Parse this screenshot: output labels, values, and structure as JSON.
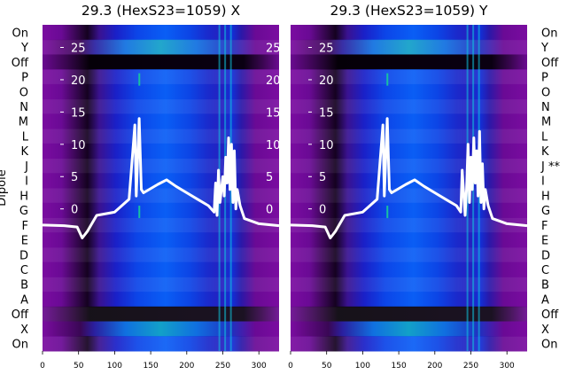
{
  "chart_data": [
    {
      "type": "heatmap",
      "title": "29.3 (HexS23=1059) X",
      "ylabel": "Dipole",
      "row_labels": [
        "On",
        "Y",
        "Off",
        "P",
        "O",
        "N",
        "M",
        "L",
        "K",
        "J",
        "I",
        "H",
        "G",
        "F",
        "E",
        "D",
        "C",
        "B",
        "A",
        "Off",
        "X",
        "On"
      ],
      "x_ticks": [
        0,
        50,
        100,
        150,
        200,
        250,
        300
      ],
      "xlim": [
        0,
        328
      ],
      "overlay_ticks": [
        25,
        20,
        15,
        10,
        5,
        0
      ],
      "overlay_ylim": [
        -22,
        28.5
      ],
      "overlay_series": {
        "x": [
          0,
          30,
          48,
          55,
          62,
          75,
          100,
          120,
          128,
          130,
          134,
          137,
          140,
          160,
          172,
          185,
          200,
          215,
          230,
          238,
          240,
          242,
          244,
          246,
          248,
          250,
          252,
          254,
          256,
          258,
          260,
          262,
          264,
          266,
          268,
          270,
          274,
          280,
          300,
          328
        ],
        "y": [
          -2.5,
          -2.6,
          -2.8,
          -4.5,
          -3.5,
          -1,
          -0.5,
          1.5,
          13,
          2,
          14,
          3,
          2.5,
          3.8,
          4.5,
          3.5,
          2.5,
          1.5,
          0.5,
          -0.5,
          4,
          -1,
          6,
          1,
          3,
          5,
          2,
          8,
          4,
          11,
          3,
          10,
          1,
          9,
          0,
          3,
          0.5,
          -1.5,
          -2.3,
          -2.6
        ]
      }
    },
    {
      "type": "heatmap",
      "title": "29.3 (HexS23=1059) Y",
      "row_labels": [
        "On",
        "Y",
        "Off",
        "P",
        "O",
        "N",
        "M",
        "L",
        "K",
        "J **",
        "I",
        "H",
        "G",
        "F",
        "E",
        "D",
        "C",
        "B",
        "A",
        "Off",
        "X",
        "On"
      ],
      "x_ticks": [
        0,
        50,
        100,
        150,
        200,
        250,
        300
      ],
      "xlim": [
        0,
        328
      ],
      "overlay_ticks": [
        25,
        20,
        15,
        10,
        5,
        0
      ],
      "overlay_ylim": [
        -22,
        28.5
      ],
      "overlay_series": {
        "x": [
          0,
          30,
          48,
          55,
          62,
          75,
          100,
          120,
          128,
          130,
          134,
          137,
          140,
          160,
          172,
          185,
          200,
          215,
          230,
          236,
          238,
          242,
          244,
          246,
          248,
          250,
          252,
          254,
          256,
          258,
          260,
          262,
          264,
          266,
          268,
          270,
          274,
          280,
          300,
          328
        ],
        "y": [
          -2.5,
          -2.6,
          -2.8,
          -4.5,
          -3.5,
          -1,
          -0.5,
          1.5,
          13,
          2,
          14,
          3,
          2.5,
          3.8,
          4.5,
          3.5,
          2.5,
          1.5,
          0.5,
          -0.5,
          6,
          -1,
          3,
          10,
          1,
          8,
          3,
          11,
          4,
          9,
          2,
          12,
          1,
          7,
          0,
          3,
          0.5,
          -1.5,
          -2.3,
          -2.6
        ]
      }
    }
  ]
}
